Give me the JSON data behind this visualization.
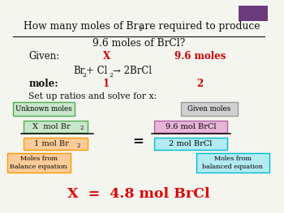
{
  "bg_color": "#f5f5f0",
  "purple_rect_color": "#6b3a7d",
  "title_line2": "9.6 moles of BrCl?",
  "given_label": "Given:",
  "given_x": "X",
  "given_moles": "9.6 moles",
  "mole_label": "mole:",
  "mole_1": "1",
  "mole_2": "2",
  "set_up_text": "Set up ratios and solve for x:",
  "unknown_box_text": "Unknown moles",
  "unknown_box_color": "#c8e6c9",
  "unknown_box_border": "#4caf50",
  "given_box_text": "Given moles",
  "given_box_color": "#d0d0d0",
  "given_box_border": "#999999",
  "num_left_color": "#c8e6c9",
  "num_left_border": "#4caf50",
  "den_left_color": "#ffcc99",
  "den_left_border": "#ff9900",
  "num_right_text": "9.6 mol BrCl",
  "num_right_color": "#e8b4d8",
  "num_right_border": "#b060a0",
  "den_right_text": "2 mol BrCl",
  "den_right_color": "#b2ebf2",
  "den_right_border": "#00bcd4",
  "equals_sign": "=",
  "moles_from_balance_text": "Moles from\nBalance equation",
  "moles_from_balance_color": "#ffcc99",
  "moles_from_balance_border": "#ff9900",
  "moles_from_balanced_text": "Moles from\nbalanced equation",
  "moles_from_balanced_color": "#b2ebf2",
  "moles_from_balanced_border": "#00bcd4",
  "answer": "X  =  4.8 mol BrCl",
  "answer_color": "#dd0000",
  "red_color": "#cc0000",
  "black_color": "#111111"
}
